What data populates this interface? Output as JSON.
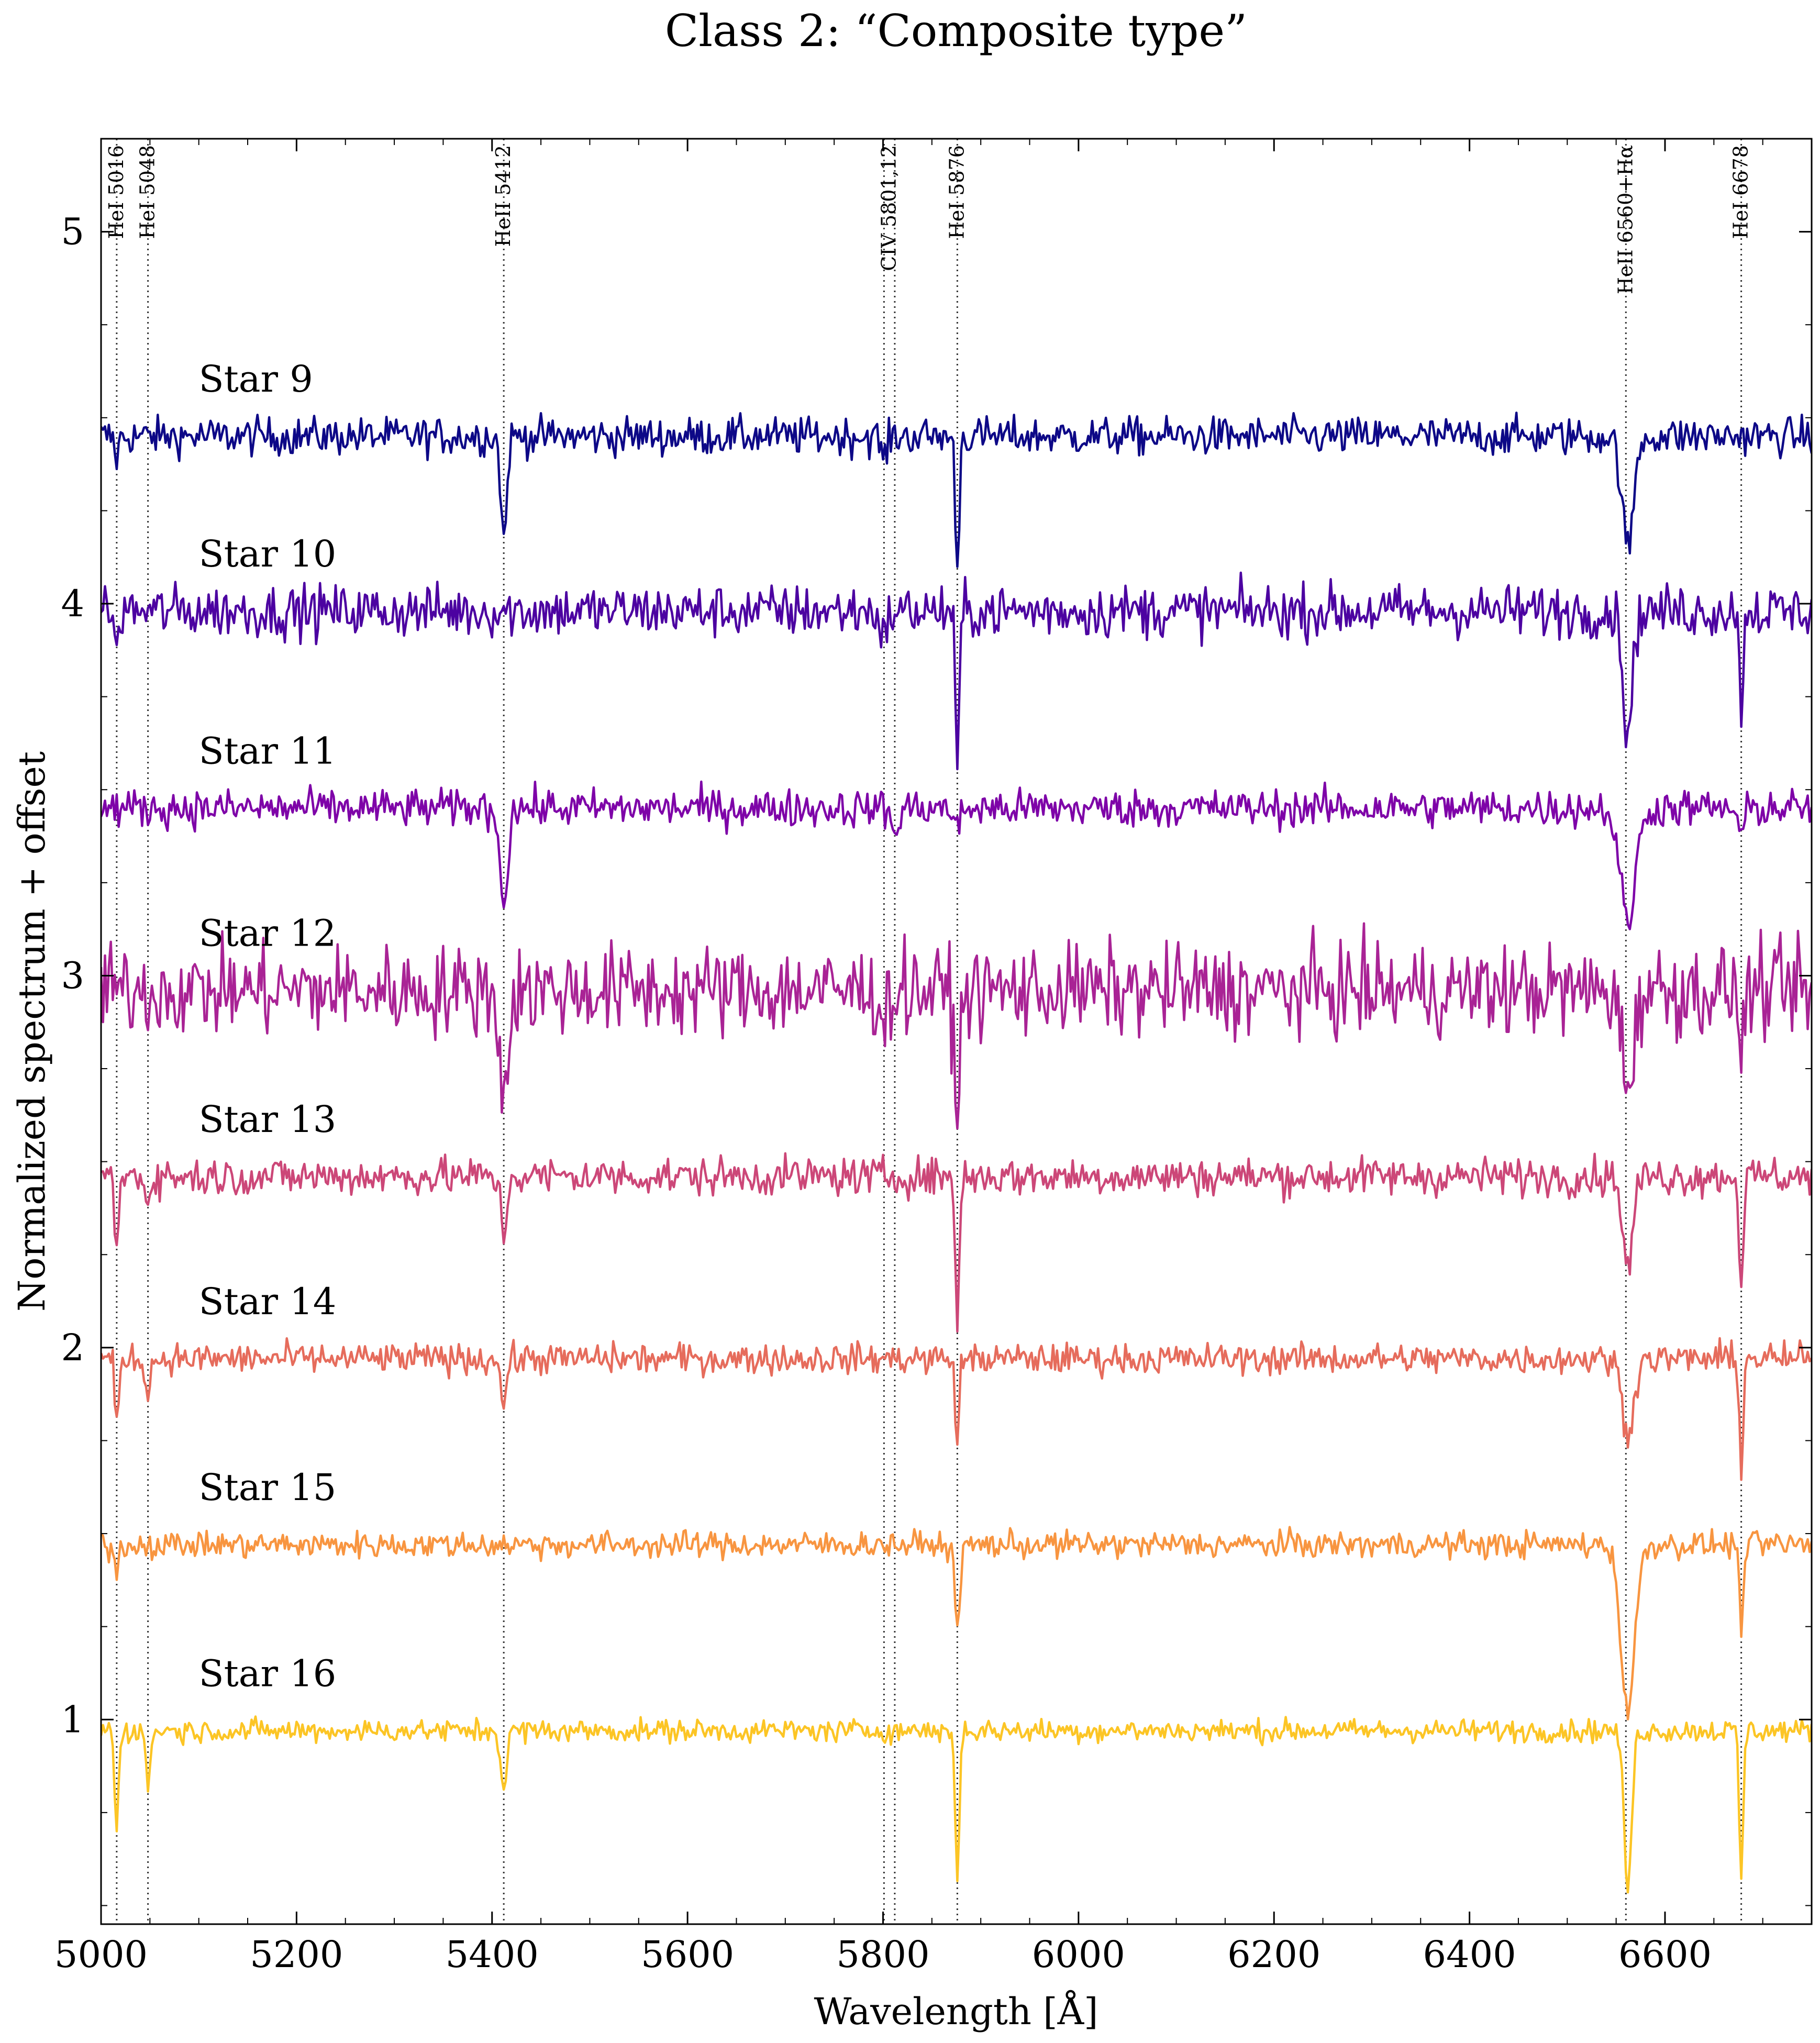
{
  "chart_data": {
    "type": "line",
    "title": "Class 2: “Composite type”",
    "xlabel": "Wavelength [Å]",
    "ylabel": "Normalized spectrum + offset",
    "xlim": [
      5000,
      6750
    ],
    "ylim": [
      0.45,
      5.25
    ],
    "xticks": [
      5000,
      5200,
      5400,
      5600,
      5800,
      6000,
      6200,
      6400,
      6600
    ],
    "yticks": [
      1,
      2,
      3,
      4,
      5
    ],
    "grid": false,
    "legend": "none",
    "line_markers": [
      {
        "label": "HeI 5016",
        "x": 5016
      },
      {
        "label": "HeI 5048",
        "x": 5048
      },
      {
        "label": "HeII 5412",
        "x": 5412
      },
      {
        "label": "CIV 5801,12",
        "x": 5801,
        "x2": 5812
      },
      {
        "label": "HeI 5876",
        "x": 5876
      },
      {
        "label": "HeII 6560+Hα",
        "x": 6560
      },
      {
        "label": "HeI 6678",
        "x": 6678
      }
    ],
    "series": [
      {
        "name": "Star 9",
        "offset": 4.45,
        "noise": 0.05,
        "color": "#0d0887",
        "features": [
          [
            5412,
            0.28,
            3
          ],
          [
            5876,
            0.35,
            2
          ],
          [
            5801,
            0.06,
            3
          ],
          [
            6562,
            0.3,
            6
          ],
          [
            5016,
            0.06,
            2
          ]
        ]
      },
      {
        "name": "Star 10",
        "offset": 3.98,
        "noise": 0.07,
        "color": "#4c02a1",
        "features": [
          [
            5876,
            0.43,
            2
          ],
          [
            6562,
            0.32,
            5
          ],
          [
            6678,
            0.25,
            2
          ],
          [
            5016,
            0.12,
            2
          ],
          [
            5801,
            0.08,
            3
          ]
        ]
      },
      {
        "name": "Star 11",
        "offset": 3.45,
        "noise": 0.05,
        "color": "#7e03a8",
        "features": [
          [
            5412,
            0.25,
            4
          ],
          [
            6562,
            0.3,
            8
          ],
          [
            5812,
            0.08,
            3
          ],
          [
            5876,
            0.06,
            3
          ],
          [
            6678,
            0.08,
            3
          ]
        ]
      },
      {
        "name": "Star 12",
        "offset": 2.96,
        "noise": 0.12,
        "color": "#a92395",
        "features": [
          [
            5412,
            0.3,
            4
          ],
          [
            5876,
            0.3,
            3
          ],
          [
            6562,
            0.25,
            6
          ],
          [
            6678,
            0.18,
            2
          ],
          [
            5801,
            0.1,
            3
          ]
        ]
      },
      {
        "name": "Star 13",
        "offset": 2.46,
        "noise": 0.05,
        "color": "#cc4778",
        "features": [
          [
            5412,
            0.16,
            3
          ],
          [
            5876,
            0.4,
            2
          ],
          [
            6562,
            0.25,
            5
          ],
          [
            6678,
            0.3,
            2
          ],
          [
            5016,
            0.2,
            2
          ],
          [
            5048,
            0.08,
            2
          ]
        ]
      },
      {
        "name": "Star 14",
        "offset": 1.97,
        "noise": 0.04,
        "color": "#e66c5c",
        "features": [
          [
            5016,
            0.18,
            2
          ],
          [
            5048,
            0.12,
            2
          ],
          [
            5412,
            0.12,
            3
          ],
          [
            5876,
            0.22,
            2
          ],
          [
            6562,
            0.2,
            6
          ],
          [
            6678,
            0.28,
            2
          ]
        ]
      },
      {
        "name": "Star 15",
        "offset": 1.47,
        "noise": 0.035,
        "color": "#f89540",
        "features": [
          [
            5016,
            0.08,
            2
          ],
          [
            5876,
            0.2,
            3
          ],
          [
            6562,
            0.45,
            7
          ],
          [
            6678,
            0.22,
            2
          ]
        ]
      },
      {
        "name": "Star 16",
        "offset": 0.97,
        "noise": 0.03,
        "color": "#fcc525",
        "features": [
          [
            5016,
            0.26,
            2
          ],
          [
            5048,
            0.17,
            2
          ],
          [
            5412,
            0.16,
            3
          ],
          [
            5876,
            0.42,
            2
          ],
          [
            6562,
            0.42,
            4
          ],
          [
            6678,
            0.4,
            2
          ]
        ]
      }
    ]
  }
}
